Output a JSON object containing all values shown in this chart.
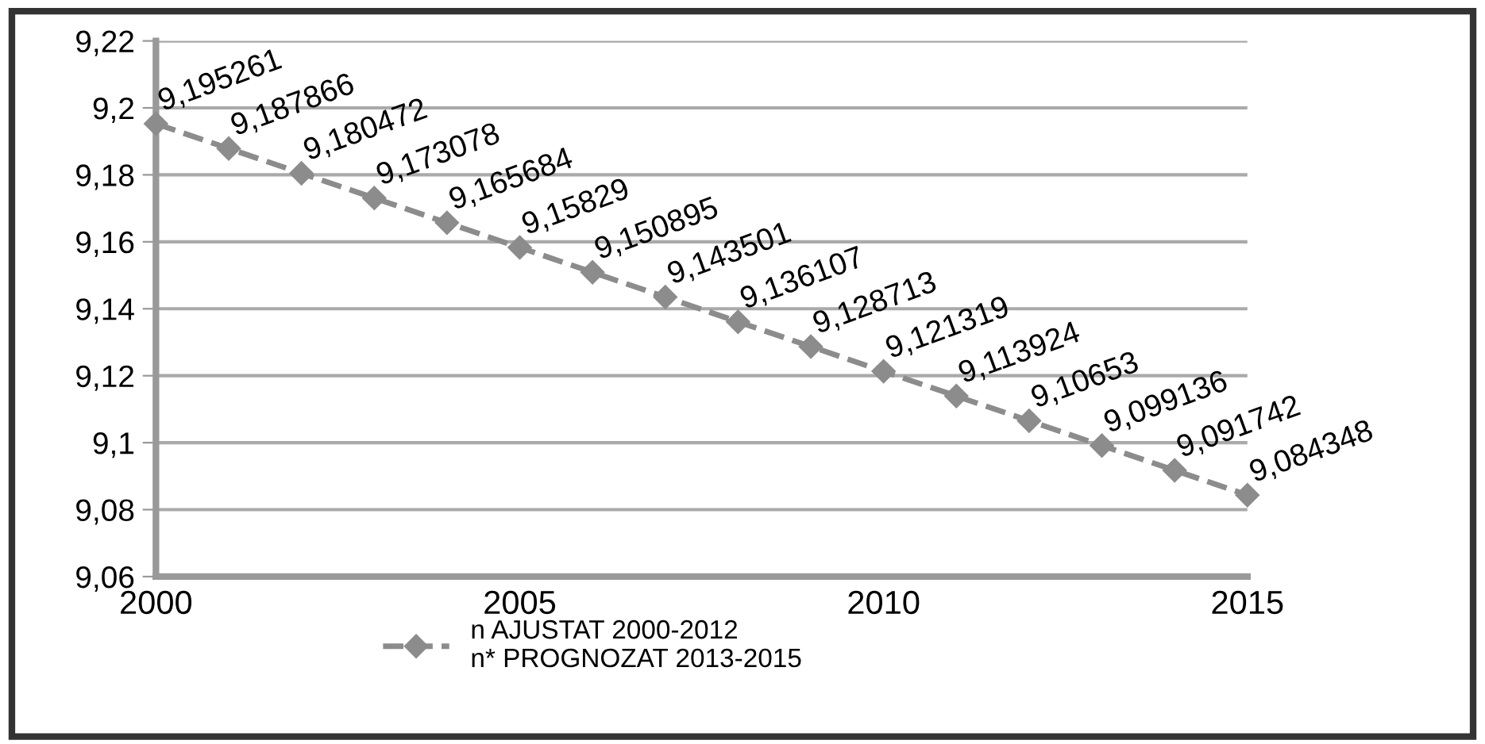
{
  "chart_data": {
    "type": "line",
    "x": [
      2000,
      2001,
      2002,
      2003,
      2004,
      2005,
      2006,
      2007,
      2008,
      2009,
      2010,
      2011,
      2012,
      2013,
      2014,
      2015
    ],
    "series": [
      {
        "name": "n AJUSTAT 2000-2012\nn* PROGNOZAT 2013-2015",
        "color": "#8c8c8c",
        "values": [
          9.195261,
          9.187866,
          9.180472,
          9.173078,
          9.165684,
          9.15829,
          9.150895,
          9.143501,
          9.136107,
          9.128713,
          9.121319,
          9.113924,
          9.10653,
          9.099136,
          9.091742,
          9.084348
        ],
        "value_labels": [
          "9,195261",
          "9,187866",
          "9,180472",
          "9,173078",
          "9,165684",
          "9,15829",
          "9,150895",
          "9,143501",
          "9,136107",
          "9,128713",
          "9,121319",
          "9,113924",
          "9,10653",
          "9,099136",
          "9,091742",
          "9,084348"
        ]
      }
    ],
    "xlim": [
      2000,
      2015
    ],
    "xticks": [
      2000,
      2005,
      2010,
      2015
    ],
    "ylim": [
      9.06,
      9.22
    ],
    "yticks": [
      {
        "value": 9.06,
        "label": "9,06"
      },
      {
        "value": 9.08,
        "label": "9,08"
      },
      {
        "value": 9.1,
        "label": "9,1"
      },
      {
        "value": 9.12,
        "label": "9,12"
      },
      {
        "value": 9.14,
        "label": "9,14"
      },
      {
        "value": 9.16,
        "label": "9,16"
      },
      {
        "value": 9.18,
        "label": "9,18"
      },
      {
        "value": 9.2,
        "label": "9,2"
      },
      {
        "value": 9.22,
        "label": "9,22"
      }
    ],
    "grid": "y",
    "legend": "bottom",
    "marker": "diamond",
    "line_style": "dashed"
  }
}
